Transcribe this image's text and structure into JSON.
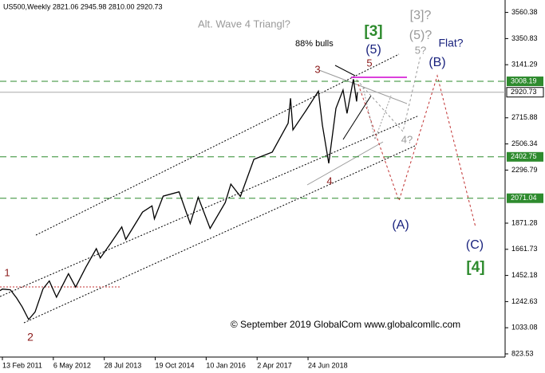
{
  "chart_data": {
    "type": "line",
    "header": "US500,Weekly  2821.06 2945.98 2810.00 2920.73",
    "x": [
      "2011-01-23",
      "2011-02-13",
      "2011-04-24",
      "2011-06-19",
      "2011-08-07",
      "2011-10-02",
      "2011-11-27",
      "2012-02-05",
      "2012-04-01",
      "2012-06-03",
      "2012-09-16",
      "2012-11-18",
      "2013-02-17",
      "2013-05-19",
      "2013-06-23",
      "2013-09-22",
      "2013-12-29",
      "2014-02-02",
      "2014-06-29",
      "2014-09-21",
      "2014-10-12",
      "2014-12-28",
      "2015-05-17",
      "2015-08-23",
      "2015-11-01",
      "2016-02-14",
      "2016-06-26",
      "2016-08-14",
      "2016-11-06",
      "2017-03-05",
      "2017-08-13",
      "2017-12-31",
      "2018-01-21",
      "2018-02-11",
      "2018-06-10",
      "2018-09-23",
      "2018-10-28",
      "2018-12-23",
      "2019-02-24",
      "2019-04-28",
      "2019-06-02",
      "2019-07-28",
      "2019-08-25",
      "2019-09-01"
    ],
    "values": [
      1330,
      1343,
      1337,
      1271,
      1199,
      1099,
      1158,
      1345,
      1408,
      1278,
      1466,
      1359,
      1519,
      1667,
      1592,
      1710,
      1841,
      1741,
      1960,
      2010,
      1906,
      2088,
      2122,
      1868,
      2079,
      1829,
      2037,
      2184,
      2085,
      2383,
      2441,
      2673,
      2872,
      2619,
      2779,
      2929,
      2658,
      2351,
      2792,
      2939,
      2751,
      3025,
      2847,
      2920.73
    ],
    "color": "#000000",
    "xlim": [
      "2011-01-23",
      "2023-03-23"
    ],
    "xticks": [
      {
        "value": "2011-02-13",
        "label": "13 Feb 2011"
      },
      {
        "value": "2012-05-06",
        "label": "6 May 2012"
      },
      {
        "value": "2013-07-28",
        "label": "28 Jul 2013"
      },
      {
        "value": "2014-10-19",
        "label": "19 Oct 2014"
      },
      {
        "value": "2016-01-10",
        "label": "10 Jan 2016"
      },
      {
        "value": "2017-04-02",
        "label": "2 Apr 2017"
      },
      {
        "value": "2018-06-24",
        "label": "24 Jun 2018"
      }
    ],
    "ylim": [
      798,
      3660
    ],
    "yticks": [
      823.53,
      1033.08,
      1242.63,
      1452.18,
      1661.73,
      1871.28,
      2296.79,
      2506.34,
      2715.88,
      3141.29,
      3350.83,
      3560.38
    ],
    "levels": [
      3008.19,
      2402.75,
      2071.04
    ],
    "level_color": "#2e8b2e",
    "last_price": 2920.73,
    "annotations": [
      {
        "text": "Alt. Wave 4 Triangl?",
        "color": "#999999"
      },
      {
        "text": "88% bulls",
        "color": "#000000"
      },
      {
        "text": "[3]",
        "color": "#2e8b2e"
      },
      {
        "text": "(5)",
        "color": "#1a237e"
      },
      {
        "text": "[3]?",
        "color": "#999999"
      },
      {
        "text": "(5)?",
        "color": "#999999"
      },
      {
        "text": "5?",
        "color": "#999999"
      },
      {
        "text": "Flat?",
        "color": "#1a237e"
      },
      {
        "text": "(B)",
        "color": "#1a237e"
      },
      {
        "text": "3",
        "color": "#8b1a1a"
      },
      {
        "text": "5",
        "color": "#8b1a1a"
      },
      {
        "text": "4?",
        "color": "#999999"
      },
      {
        "text": "4",
        "color": "#8b1a1a"
      },
      {
        "text": "(A)",
        "color": "#1a237e"
      },
      {
        "text": "(C)",
        "color": "#1a237e"
      },
      {
        "text": "[4]",
        "color": "#2e8b2e"
      },
      {
        "text": "1",
        "color": "#8b1a1a"
      },
      {
        "text": "2",
        "color": "#8b1a1a"
      },
      {
        "text": "© September 2019 GlobalCom www.globalcomllc.com",
        "color": "#000000"
      }
    ]
  }
}
